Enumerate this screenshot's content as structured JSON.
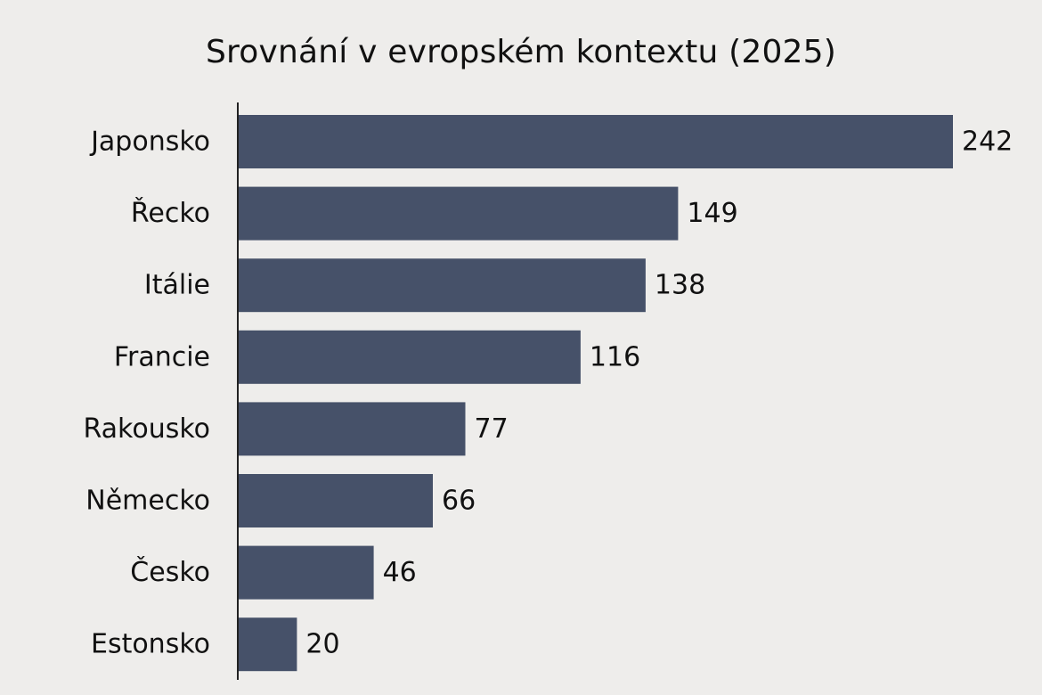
{
  "chart_data": {
    "type": "bar",
    "orientation": "horizontal",
    "title": "Srovnání v evropském kontextu (2025)",
    "xlabel": "",
    "ylabel": "",
    "categories": [
      "Japonsko",
      "Řecko",
      "Itálie",
      "Francie",
      "Rakousko",
      "Německo",
      "Česko",
      "Estonsko"
    ],
    "values": [
      242,
      149,
      138,
      116,
      77,
      66,
      46,
      20
    ],
    "xlim": [
      0,
      242
    ],
    "grid": false,
    "legend": "none",
    "bar_color": "#465169",
    "axis_color": "#222222",
    "background": "#eeedeb"
  }
}
